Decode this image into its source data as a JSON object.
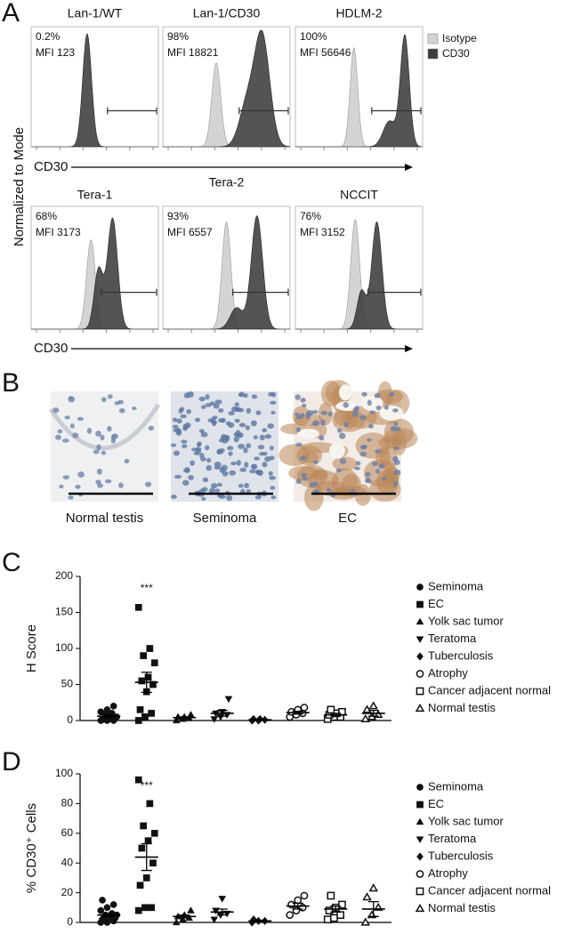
{
  "panel_labels": [
    "A",
    "B",
    "C",
    "D"
  ],
  "flow": {
    "y_label": "Normalized to Mode",
    "x_label": "CD30",
    "legend": [
      {
        "name": "Isotype",
        "color": "#d4d4d4"
      },
      {
        "name": "CD30",
        "color": "#3c3c3c"
      }
    ],
    "plots": [
      {
        "title": "Lan-1/WT",
        "percent": "0.2%",
        "mfi": "MFI 123"
      },
      {
        "title": "Lan-1/CD30",
        "percent": "98%",
        "mfi": "MFI 18821"
      },
      {
        "title": "HDLM-2",
        "percent": "100%",
        "mfi": "MFI 56646"
      },
      {
        "title": "Tera-1",
        "percent": "68%",
        "mfi": "MFI 3173"
      },
      {
        "title": "Tera-2",
        "percent": "93%",
        "mfi": "MFI 6557"
      },
      {
        "title": "NCCIT",
        "percent": "76%",
        "mfi": "MFI 3152"
      }
    ]
  },
  "ihc": {
    "images": [
      {
        "label": "Normal testis"
      },
      {
        "label": "Seminoma"
      },
      {
        "label": "EC"
      }
    ]
  },
  "chart_data": [
    {
      "type": "dotplot",
      "y_label": "H Score",
      "annotation": "***",
      "ylim": [
        0,
        200
      ],
      "yticks": [
        0,
        50,
        100,
        150,
        200
      ],
      "series": [
        {
          "name": "Seminoma",
          "marker": "circle",
          "filled": true,
          "values": [
            0,
            0,
            0,
            1,
            2,
            3,
            3,
            5,
            5,
            8,
            10,
            12,
            15,
            20
          ],
          "mean": 6,
          "sem": 2
        },
        {
          "name": "EC",
          "marker": "square",
          "filled": true,
          "values": [
            0,
            5,
            10,
            15,
            40,
            50,
            55,
            60,
            80,
            90,
            100,
            157
          ],
          "mean": 53,
          "sem": 14
        },
        {
          "name": "Yolk sac tumor",
          "marker": "triangle",
          "filled": true,
          "values": [
            0,
            2,
            3,
            5,
            5,
            8
          ],
          "mean": 4,
          "sem": 1
        },
        {
          "name": "Teratoma",
          "marker": "triangle-down",
          "filled": true,
          "values": [
            2,
            5,
            8,
            10,
            12,
            30
          ],
          "mean": 10,
          "sem": 4
        },
        {
          "name": "Tuberculosis",
          "marker": "diamond",
          "filled": true,
          "values": [
            0,
            0,
            1,
            2,
            2
          ],
          "mean": 1,
          "sem": 0.5
        },
        {
          "name": "Atrophy",
          "marker": "circle",
          "filled": false,
          "values": [
            5,
            8,
            10,
            12,
            15,
            18
          ],
          "mean": 11,
          "sem": 2
        },
        {
          "name": "Cancer adjacent normal",
          "marker": "square",
          "filled": false,
          "values": [
            2,
            5,
            5,
            8,
            10,
            12,
            15
          ],
          "mean": 8,
          "sem": 2
        },
        {
          "name": "Normal testis",
          "marker": "triangle",
          "filled": false,
          "values": [
            2,
            5,
            8,
            15,
            20
          ],
          "mean": 10,
          "sem": 4
        }
      ]
    },
    {
      "type": "dotplot",
      "y_label": "% CD30⁺ Cells",
      "annotation": "***",
      "ylim": [
        0,
        100
      ],
      "yticks": [
        0,
        20,
        40,
        60,
        80,
        100
      ],
      "series": [
        {
          "name": "Seminoma",
          "marker": "circle",
          "filled": true,
          "values": [
            0,
            0,
            1,
            2,
            2,
            3,
            3,
            4,
            5,
            5,
            6,
            8,
            10,
            12,
            15
          ],
          "mean": 5,
          "sem": 1
        },
        {
          "name": "EC",
          "marker": "square",
          "filled": true,
          "values": [
            8,
            10,
            10,
            25,
            30,
            40,
            50,
            55,
            60,
            65,
            80,
            96
          ],
          "mean": 44,
          "sem": 9
        },
        {
          "name": "Yolk sac tumor",
          "marker": "triangle",
          "filled": true,
          "values": [
            0,
            2,
            3,
            4,
            5,
            8
          ],
          "mean": 4,
          "sem": 1
        },
        {
          "name": "Teratoma",
          "marker": "triangle-down",
          "filled": true,
          "values": [
            2,
            5,
            6,
            8,
            16
          ],
          "mean": 7,
          "sem": 2
        },
        {
          "name": "Tuberculosis",
          "marker": "diamond",
          "filled": true,
          "values": [
            0,
            1,
            1,
            2
          ],
          "mean": 1,
          "sem": 0.5
        },
        {
          "name": "Atrophy",
          "marker": "circle",
          "filled": false,
          "values": [
            5,
            8,
            10,
            12,
            15,
            18
          ],
          "mean": 11,
          "sem": 2
        },
        {
          "name": "Cancer adjacent normal",
          "marker": "square",
          "filled": false,
          "values": [
            2,
            3,
            5,
            8,
            10,
            12,
            18
          ],
          "mean": 9,
          "sem": 2
        },
        {
          "name": "Normal testis",
          "marker": "triangle",
          "filled": false,
          "values": [
            0,
            5,
            10,
            17,
            23
          ],
          "mean": 9,
          "sem": 5
        }
      ]
    }
  ]
}
